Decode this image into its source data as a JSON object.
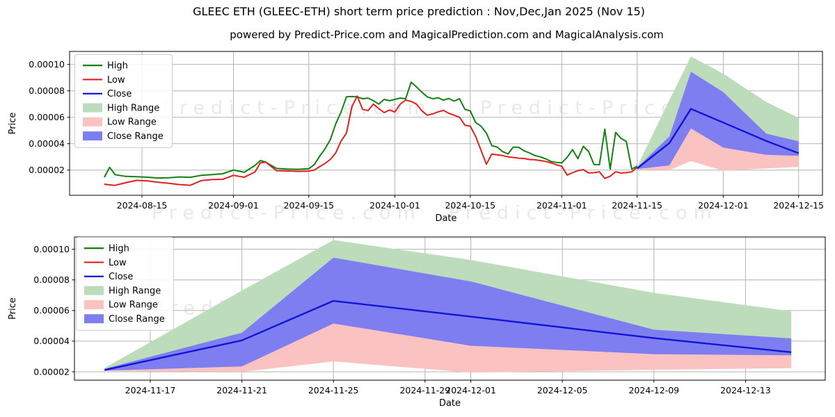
{
  "title": "GLEEC ETH (GLEEC-ETH) short term price prediction : Nov,Dec,Jan 2025 (Nov 15)",
  "subtitle": "powered by Predict-Price.com and MagicalPrediction.com and MagicalAnalysis.com",
  "watermark": "Predict-Price.com",
  "colors": {
    "high": "#128112",
    "low": "#e02020",
    "close": "#1414d6",
    "high_fill": "#bcdcbc",
    "low_fill": "#fbc2c2",
    "close_fill": "#7e7ef0",
    "grid": "#b3b3b3",
    "spine": "#000000",
    "text": "#000000",
    "watermark": "#e9e9e9",
    "legend_border": "#cccccc",
    "legend_bg": "#ffffff"
  },
  "legend": [
    {
      "label": "High",
      "swatch": "line",
      "color": "high"
    },
    {
      "label": "Low",
      "swatch": "line",
      "color": "low"
    },
    {
      "label": "Close",
      "swatch": "line",
      "color": "close"
    },
    {
      "label": "High Range",
      "swatch": "patch",
      "color": "high_fill"
    },
    {
      "label": "Low Range",
      "swatch": "patch",
      "color": "low_fill"
    },
    {
      "label": "Close Range",
      "swatch": "patch",
      "color": "close_fill"
    }
  ],
  "chart_data": [
    {
      "name": "price-history-chart",
      "type": "line",
      "xlabel": "Date",
      "ylabel": "Price",
      "value_unit": 1e-07,
      "x_ticks": [
        "2024-08-15",
        "2024-09-01",
        "2024-09-15",
        "2024-10-01",
        "2024-10-15",
        "2024-11-01",
        "2024-11-15",
        "2024-12-01",
        "2024-12-15"
      ],
      "y_ticks": [
        {
          "label": "0.00002",
          "value": 200
        },
        {
          "label": "0.00004",
          "value": 400
        },
        {
          "label": "0.00006",
          "value": 600
        },
        {
          "label": "0.00008",
          "value": 800
        },
        {
          "label": "0.00010",
          "value": 1000
        }
      ],
      "series": {
        "history": {
          "dates": [
            "2024-08-08",
            "2024-08-09",
            "2024-08-10",
            "2024-08-12",
            "2024-08-14",
            "2024-08-16",
            "2024-08-18",
            "2024-08-20",
            "2024-08-22",
            "2024-08-24",
            "2024-08-26",
            "2024-08-28",
            "2024-08-30",
            "2024-09-01",
            "2024-09-03",
            "2024-09-05",
            "2024-09-06",
            "2024-09-07",
            "2024-09-09",
            "2024-09-11",
            "2024-09-13",
            "2024-09-15",
            "2024-09-16",
            "2024-09-17",
            "2024-09-18",
            "2024-09-19",
            "2024-09-20",
            "2024-09-21",
            "2024-09-22",
            "2024-09-23",
            "2024-09-24",
            "2024-09-25",
            "2024-09-26",
            "2024-09-27",
            "2024-09-28",
            "2024-09-29",
            "2024-09-30",
            "2024-10-01",
            "2024-10-02",
            "2024-10-03",
            "2024-10-04",
            "2024-10-05",
            "2024-10-06",
            "2024-10-07",
            "2024-10-08",
            "2024-10-09",
            "2024-10-10",
            "2024-10-11",
            "2024-10-12",
            "2024-10-13",
            "2024-10-14",
            "2024-10-15",
            "2024-10-16",
            "2024-10-17",
            "2024-10-18",
            "2024-10-19",
            "2024-10-20",
            "2024-10-21",
            "2024-10-22",
            "2024-10-23",
            "2024-10-24",
            "2024-10-25",
            "2024-10-26",
            "2024-10-27",
            "2024-10-28",
            "2024-10-29",
            "2024-10-30",
            "2024-10-31",
            "2024-11-01",
            "2024-11-02",
            "2024-11-03",
            "2024-11-04",
            "2024-11-05",
            "2024-11-06",
            "2024-11-07",
            "2024-11-08",
            "2024-11-09",
            "2024-11-10",
            "2024-11-11",
            "2024-11-12",
            "2024-11-13",
            "2024-11-14",
            "2024-11-15"
          ],
          "high": [
            146,
            221,
            165,
            152,
            150,
            146,
            140,
            142,
            148,
            145,
            160,
            166,
            172,
            200,
            183,
            235,
            272,
            260,
            212,
            208,
            206,
            210,
            240,
            304,
            360,
            430,
            550,
            640,
            755,
            757,
            755,
            740,
            745,
            725,
            700,
            735,
            725,
            735,
            745,
            740,
            865,
            830,
            790,
            755,
            740,
            748,
            730,
            742,
            722,
            740,
            660,
            648,
            560,
            532,
            480,
            385,
            374,
            340,
            322,
            374,
            372,
            345,
            330,
            310,
            300,
            285,
            265,
            258,
            255,
            297,
            355,
            286,
            380,
            340,
            242,
            241,
            510,
            207,
            485,
            440,
            417,
            207,
            230
          ],
          "low": [
            93,
            88,
            84,
            104,
            122,
            118,
            108,
            100,
            90,
            85,
            120,
            128,
            130,
            160,
            146,
            185,
            255,
            260,
            195,
            193,
            190,
            192,
            200,
            225,
            250,
            280,
            330,
            420,
            480,
            680,
            760,
            660,
            650,
            700,
            665,
            635,
            655,
            640,
            700,
            730,
            720,
            700,
            650,
            615,
            625,
            640,
            652,
            630,
            615,
            600,
            540,
            532,
            455,
            350,
            244,
            321,
            315,
            310,
            300,
            296,
            290,
            288,
            280,
            278,
            272,
            265,
            255,
            240,
            229,
            162,
            180,
            196,
            203,
            178,
            180,
            187,
            137,
            153,
            187,
            178,
            180,
            187,
            220
          ]
        },
        "prediction": {
          "dates": [
            "2024-11-15",
            "2024-11-21",
            "2024-11-25",
            "2024-12-01",
            "2024-12-09",
            "2024-12-15"
          ],
          "close": [
            212,
            405,
            663,
            560,
            420,
            328
          ],
          "high_range": {
            "hi": [
              225,
              730,
              1060,
              930,
              715,
              595
            ],
            "lo": [
              215,
              440,
              900,
              760,
              460,
              385
            ]
          },
          "low_range": {
            "hi": [
              215,
              280,
              520,
              375,
              320,
              312
            ],
            "lo": [
              205,
              200,
              268,
              195,
              213,
              224
            ]
          },
          "close_range": {
            "hi": [
              220,
              455,
              945,
              790,
              475,
              418
            ],
            "lo": [
              208,
              235,
              515,
              370,
              315,
              308
            ]
          }
        }
      }
    },
    {
      "name": "prediction-zoom-chart",
      "type": "line",
      "xlabel": "Date",
      "ylabel": "Price",
      "value_unit": 1e-07,
      "x_ticks": [
        "2024-11-17",
        "2024-11-21",
        "2024-11-25",
        "2024-11-29",
        "2024-12-01",
        "2024-12-05",
        "2024-12-09",
        "2024-12-13"
      ],
      "y_ticks": [
        {
          "label": "0.00002",
          "value": 200
        },
        {
          "label": "0.00004",
          "value": 400
        },
        {
          "label": "0.00006",
          "value": 600
        },
        {
          "label": "0.00008",
          "value": 800
        },
        {
          "label": "0.00010",
          "value": 1000
        }
      ],
      "series": {
        "prediction": {
          "dates": [
            "2024-11-15",
            "2024-11-21",
            "2024-11-25",
            "2024-12-01",
            "2024-12-09",
            "2024-12-15"
          ],
          "close": [
            212,
            405,
            663,
            560,
            420,
            328
          ],
          "high_range": {
            "hi": [
              225,
              730,
              1060,
              930,
              715,
              595
            ],
            "lo": [
              215,
              440,
              900,
              760,
              460,
              385
            ]
          },
          "low_range": {
            "hi": [
              215,
              280,
              520,
              375,
              320,
              312
            ],
            "lo": [
              205,
              200,
              268,
              195,
              213,
              224
            ]
          },
          "close_range": {
            "hi": [
              220,
              455,
              945,
              790,
              475,
              418
            ],
            "lo": [
              208,
              235,
              515,
              370,
              315,
              308
            ]
          }
        }
      }
    }
  ]
}
